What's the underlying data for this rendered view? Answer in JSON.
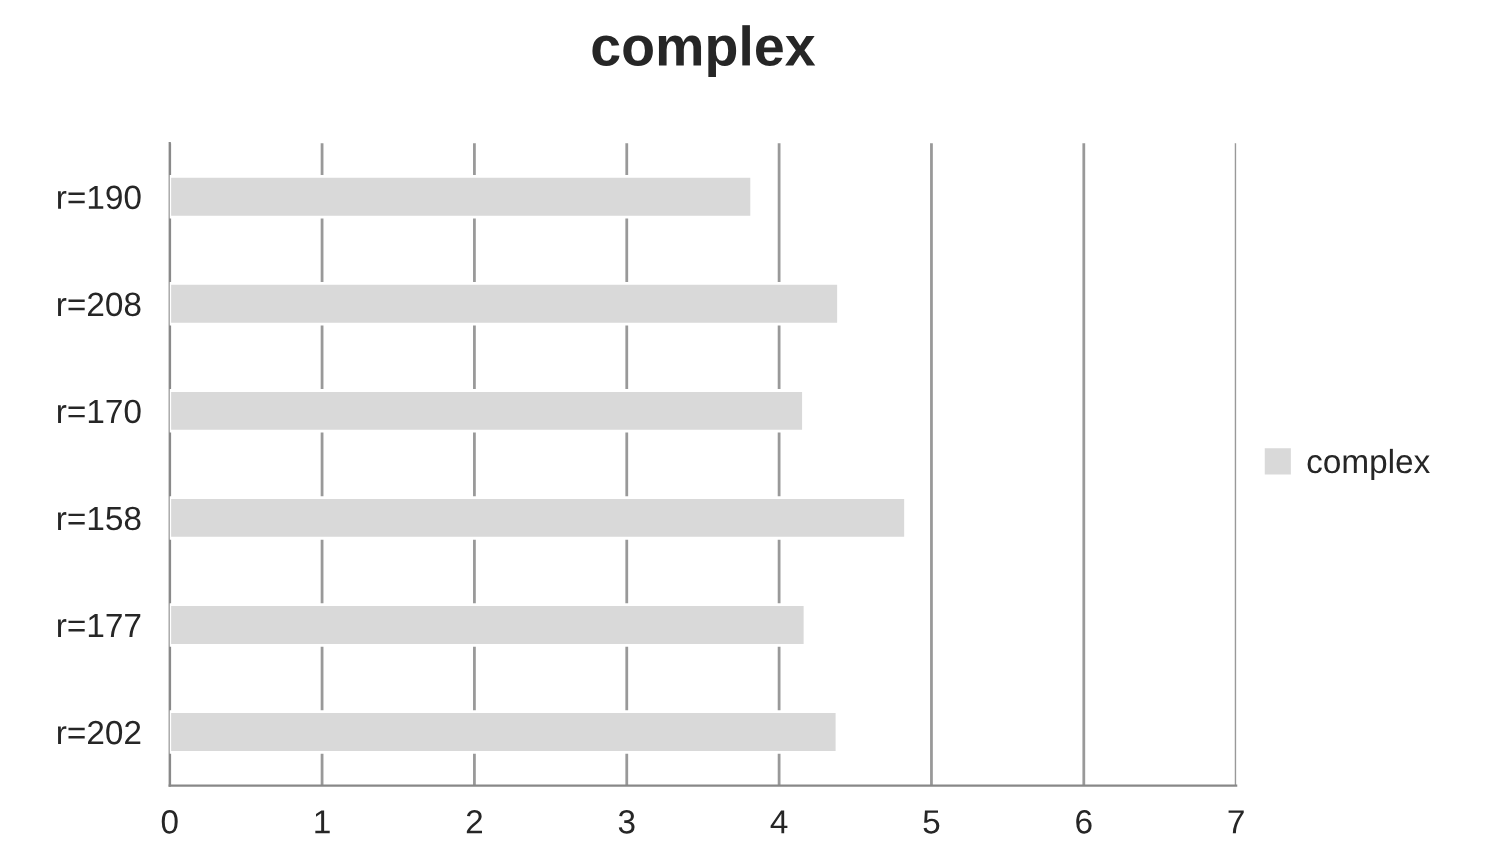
{
  "chart_data": {
    "type": "bar",
    "orientation": "horizontal",
    "title": "complex",
    "categories": [
      "r=190",
      "r=208",
      "r=170",
      "r=158",
      "r=177",
      "r=202"
    ],
    "series": [
      {
        "name": "complex",
        "color": "#d9d9d9",
        "values": [
          3.82,
          4.39,
          4.16,
          4.83,
          4.17,
          4.38
        ]
      }
    ],
    "xlim": [
      0,
      7
    ],
    "xticks": [
      0,
      1,
      2,
      3,
      4,
      5,
      6,
      7
    ],
    "grid": "x",
    "legend": "right"
  }
}
